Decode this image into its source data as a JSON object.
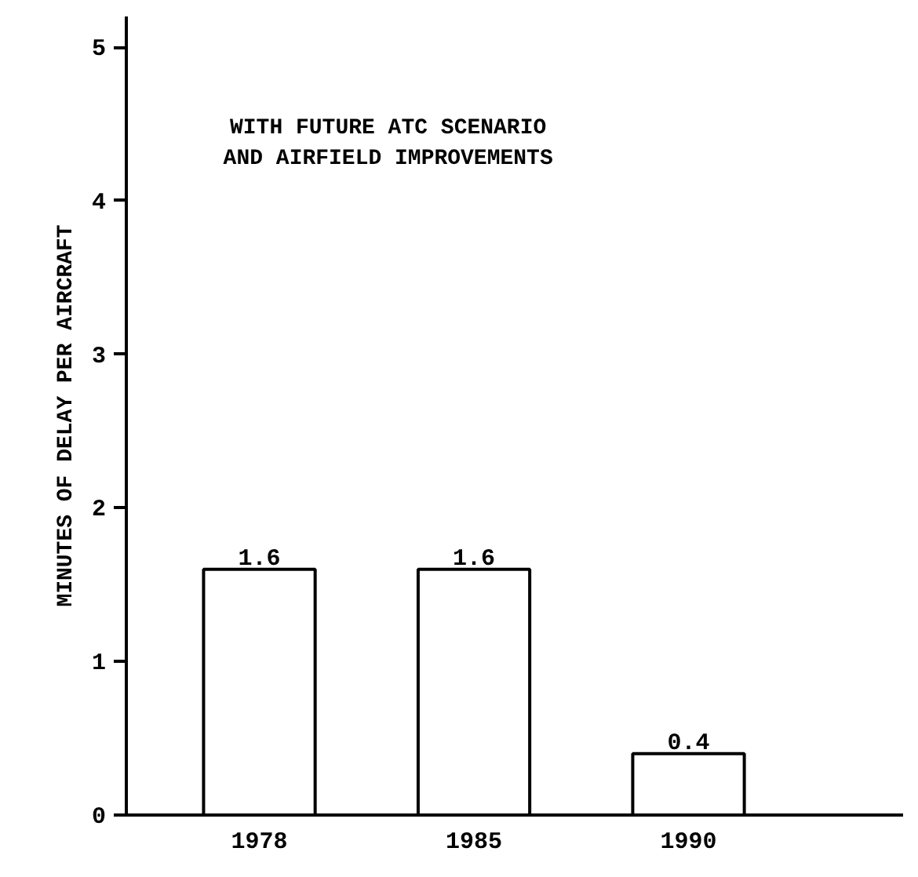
{
  "chart_data": {
    "type": "bar",
    "ylabel": "MINUTES OF DELAY PER AIRCRAFT",
    "annotations": [
      "WITH FUTURE ATC SCENARIO\nAND AIRFIELD IMPROVEMENTS"
    ],
    "categories": [
      "1978",
      "1985",
      "1990"
    ],
    "values": [
      1.6,
      1.6,
      0.4
    ],
    "color": "#ffffff",
    "data_labels": true,
    "ylim": [
      0,
      5.2
    ],
    "yticks": [
      0,
      1,
      2,
      3,
      4,
      5
    ]
  }
}
